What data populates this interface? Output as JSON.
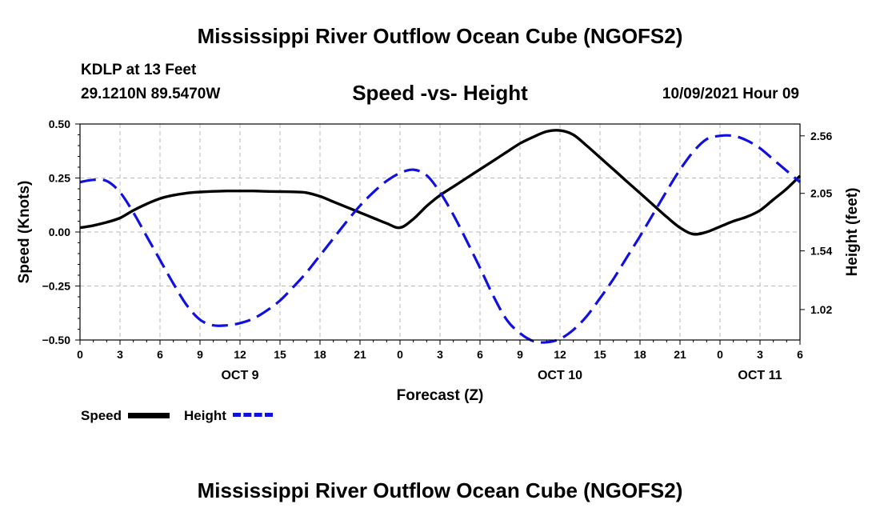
{
  "header": {
    "title": "Mississippi River Outflow Ocean Cube (NGOFS2)",
    "station": "KDLP at 13 Feet",
    "coords": "29.1210N  89.5470W",
    "subtitle": "Speed -vs- Height",
    "datetime": "10/09/2021 Hour 09"
  },
  "footer": {
    "title": "Mississippi River Outflow Ocean Cube (NGOFS2)"
  },
  "legend": {
    "speed": "Speed",
    "height": "Height"
  },
  "colors": {
    "speed": "#000000",
    "height": "#1010e0",
    "grid": "#bbbbbb"
  },
  "chart_data": {
    "type": "line",
    "xlabel": "Forecast (Z)",
    "ylabel": "Speed (Knots)",
    "y2label": "Height (feet)",
    "xlim": [
      0,
      54
    ],
    "ylim": [
      -0.5,
      0.5
    ],
    "y2lim": [
      0.75,
      2.665
    ],
    "x_ticks": [
      0,
      3,
      6,
      9,
      12,
      15,
      18,
      21,
      24,
      27,
      30,
      33,
      36,
      39,
      42,
      45,
      48,
      51,
      54
    ],
    "x_tick_labels": [
      "0",
      "3",
      "6",
      "9",
      "12",
      "15",
      "18",
      "21",
      "0",
      "3",
      "6",
      "9",
      "12",
      "15",
      "18",
      "21",
      "0",
      "3",
      "6"
    ],
    "date_labels": [
      {
        "x": 12,
        "label": "OCT 9"
      },
      {
        "x": 36,
        "label": "OCT 10"
      },
      {
        "x": 51,
        "label": "OCT 11"
      }
    ],
    "y_ticks": [
      0.5,
      0.25,
      0.0,
      -0.25,
      -0.5
    ],
    "y_tick_labels": [
      "0.50",
      "0.25",
      "0.00",
      "−0.25",
      "−0.50"
    ],
    "y2_ticks": [
      2.56,
      2.05,
      1.54,
      1.02
    ],
    "y2_tick_labels": [
      "2.56",
      "2.05",
      "1.54",
      "1.02"
    ],
    "grid": true,
    "series": [
      {
        "name": "Speed",
        "axis": "left",
        "x": [
          0,
          1,
          2,
          3,
          4,
          5,
          6,
          7,
          8,
          9,
          10,
          11,
          12,
          13,
          14,
          15,
          16,
          17,
          18,
          19,
          20,
          21,
          22,
          23,
          24,
          25,
          26,
          27,
          28,
          29,
          30,
          31,
          32,
          33,
          34,
          35,
          36,
          37,
          38,
          39,
          40,
          41,
          42,
          43,
          44,
          45,
          46,
          47,
          48,
          49,
          50,
          51,
          52,
          53,
          54
        ],
        "values": [
          0.02,
          0.03,
          0.045,
          0.065,
          0.1,
          0.13,
          0.155,
          0.17,
          0.18,
          0.185,
          0.188,
          0.19,
          0.19,
          0.19,
          0.188,
          0.187,
          0.186,
          0.182,
          0.165,
          0.14,
          0.115,
          0.09,
          0.065,
          0.04,
          0.02,
          0.06,
          0.12,
          0.17,
          0.21,
          0.25,
          0.29,
          0.33,
          0.37,
          0.41,
          0.44,
          0.465,
          0.47,
          0.45,
          0.4,
          0.345,
          0.29,
          0.235,
          0.18,
          0.125,
          0.07,
          0.02,
          -0.01,
          0.0,
          0.025,
          0.05,
          0.07,
          0.1,
          0.15,
          0.2,
          0.26
        ]
      },
      {
        "name": "Height",
        "axis": "right",
        "x": [
          0,
          1,
          2,
          3,
          4,
          5,
          6,
          7,
          8,
          9,
          10,
          11,
          12,
          13,
          14,
          15,
          16,
          17,
          18,
          19,
          20,
          21,
          22,
          23,
          24,
          25,
          26,
          27,
          28,
          29,
          30,
          31,
          32,
          33,
          34,
          35,
          36,
          37,
          38,
          39,
          40,
          41,
          42,
          43,
          44,
          45,
          46,
          47,
          48,
          49,
          50,
          51,
          52,
          53,
          54
        ],
        "values": [
          2.15,
          2.17,
          2.16,
          2.06,
          1.88,
          1.67,
          1.46,
          1.25,
          1.06,
          0.93,
          0.88,
          0.88,
          0.9,
          0.94,
          1.01,
          1.1,
          1.22,
          1.35,
          1.5,
          1.65,
          1.8,
          1.94,
          2.06,
          2.16,
          2.23,
          2.26,
          2.21,
          2.06,
          1.86,
          1.63,
          1.39,
          1.14,
          0.93,
          0.81,
          0.74,
          0.73,
          0.76,
          0.84,
          0.96,
          1.12,
          1.29,
          1.48,
          1.67,
          1.87,
          2.07,
          2.26,
          2.42,
          2.53,
          2.56,
          2.56,
          2.52,
          2.45,
          2.35,
          2.25,
          2.15
        ]
      }
    ]
  }
}
